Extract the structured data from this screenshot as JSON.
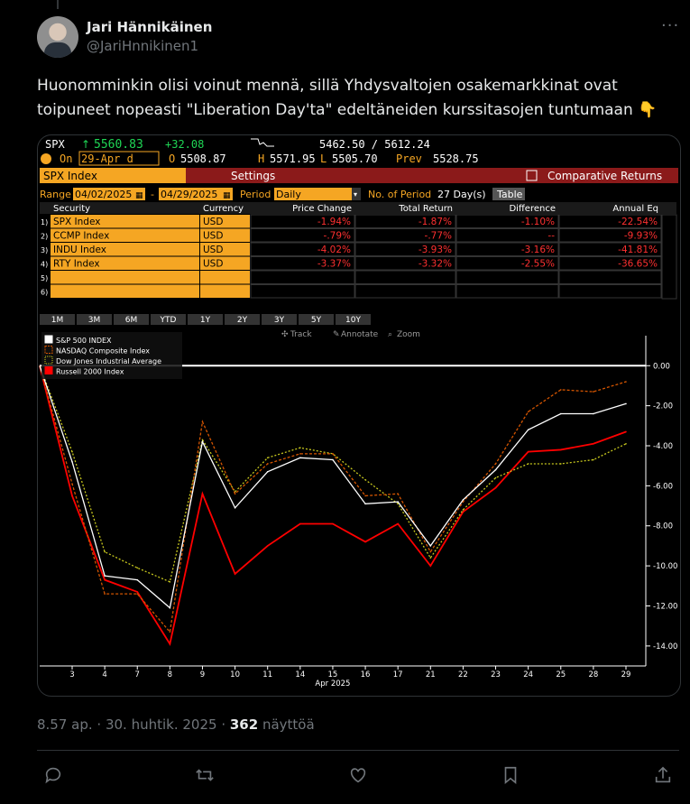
{
  "tweet": {
    "author_name": "Jari Hännikäinen",
    "author_handle": "@JariHnnikinen1",
    "more_icon": "ellipsis-icon",
    "text": "Huonomminkin olisi voinut mennä, sillä Yhdysvaltojen osakemarkkinat ovat toipuneet nopeasti \"Liberation Day'ta\" edeltäneiden kurssitasojen tuntumaan 👇",
    "time": "8.57 ap.",
    "date": "30. huhtik. 2025",
    "views_count": "362",
    "views_label": "näyttöä",
    "actions": [
      "reply-icon",
      "retweet-icon",
      "like-icon",
      "bookmark-icon",
      "share-icon"
    ]
  },
  "terminal": {
    "ticker": "SPX",
    "last": "5560.83",
    "change": "+32.08",
    "range_hi_lo": "5462.50 / 5612.24",
    "on_label": "On",
    "on_date": "29-Apr d",
    "open": "5508.87",
    "high": "5571.95",
    "low": "5505.70",
    "prev_label": "Prev",
    "prev": "5528.75",
    "o_label": "O",
    "h_label": "H",
    "l_label": "L",
    "index_label": "SPX Index",
    "settings_label": "Settings",
    "comparative_label": "Comparative Returns",
    "range_label": "Range",
    "range_from": "04/02/2025",
    "range_to": "04/29/2025",
    "period_label": "Period",
    "period_value": "Daily",
    "num_period_label": "No. of Period",
    "num_period_value": "27 Day(s)",
    "table_button": "Table",
    "table_headers": [
      "Security",
      "Currency",
      "Price Change",
      "Total Return",
      "Difference",
      "Annual Eq"
    ],
    "rows": [
      {
        "num": "1)",
        "security": "SPX Index",
        "currency": "USD",
        "price_change": "-1.94%",
        "total_return": "-1.87%",
        "difference": "-1.10%",
        "annual_eq": "-22.54%"
      },
      {
        "num": "2)",
        "security": "CCMP Index",
        "currency": "USD",
        "price_change": "-.79%",
        "total_return": "-.77%",
        "difference": "--",
        "annual_eq": "-9.93%"
      },
      {
        "num": "3)",
        "security": "INDU Index",
        "currency": "USD",
        "price_change": "-4.02%",
        "total_return": "-3.93%",
        "difference": "-3.16%",
        "annual_eq": "-41.81%"
      },
      {
        "num": "4)",
        "security": "RTY Index",
        "currency": "USD",
        "price_change": "-3.37%",
        "total_return": "-3.32%",
        "difference": "-2.55%",
        "annual_eq": "-36.65%"
      },
      {
        "num": "5)",
        "security": "",
        "currency": "",
        "price_change": "",
        "total_return": "",
        "difference": "",
        "annual_eq": ""
      },
      {
        "num": "6)",
        "security": "",
        "currency": "",
        "price_change": "",
        "total_return": "",
        "difference": "",
        "annual_eq": ""
      }
    ],
    "period_tabs": [
      "1M",
      "3M",
      "6M",
      "YTD",
      "1Y",
      "2Y",
      "3Y",
      "5Y",
      "10Y"
    ],
    "chart_tools": [
      "Track",
      "Annotate",
      "Zoom"
    ]
  },
  "chart_data": {
    "type": "line",
    "x": [
      "3",
      "4",
      "7",
      "8",
      "9",
      "10",
      "11",
      "14",
      "15",
      "16",
      "17",
      "21",
      "22",
      "23",
      "24",
      "25",
      "28",
      "29"
    ],
    "xlabel": "Apr 2025",
    "ylim": [
      -15,
      1.5
    ],
    "yticks": [
      "0.00",
      "-2.00",
      "-4.00",
      "-6.00",
      "-8.00",
      "-10.00",
      "-12.00",
      "-14.00"
    ],
    "legend_position": "top-left",
    "series": [
      {
        "name": "S&P 500 INDEX",
        "color": "#ffffff",
        "values": [
          -4.8,
          -10.5,
          -10.7,
          -12.1,
          -3.8,
          -7.1,
          -5.3,
          -4.6,
          -4.7,
          -6.9,
          -6.8,
          -9.0,
          -6.7,
          -5.2,
          -3.2,
          -2.4,
          -2.4,
          -1.9
        ]
      },
      {
        "name": "NASDAQ Composite Index",
        "color": "#d35400",
        "values": [
          -5.9,
          -11.4,
          -11.4,
          -13.3,
          -2.8,
          -6.4,
          -4.9,
          -4.4,
          -4.4,
          -6.5,
          -6.4,
          -9.3,
          -6.8,
          -4.9,
          -2.3,
          -1.2,
          -1.3,
          -0.8
        ]
      },
      {
        "name": "Dow Jones Industrial Average",
        "color": "#c8c81e",
        "values": [
          -4.3,
          -9.3,
          -10.1,
          -10.8,
          -3.7,
          -6.3,
          -4.6,
          -4.1,
          -4.4,
          -5.7,
          -6.9,
          -9.6,
          -7.2,
          -5.6,
          -4.9,
          -4.9,
          -4.7,
          -3.9
        ]
      },
      {
        "name": "Russell 2000 Index",
        "color": "#ff0000",
        "values": [
          -6.5,
          -10.7,
          -11.3,
          -13.9,
          -6.4,
          -10.4,
          -9.0,
          -7.9,
          -7.9,
          -8.8,
          -7.9,
          -10.0,
          -7.3,
          -6.1,
          -4.3,
          -4.2,
          -3.9,
          -3.3
        ]
      }
    ]
  }
}
